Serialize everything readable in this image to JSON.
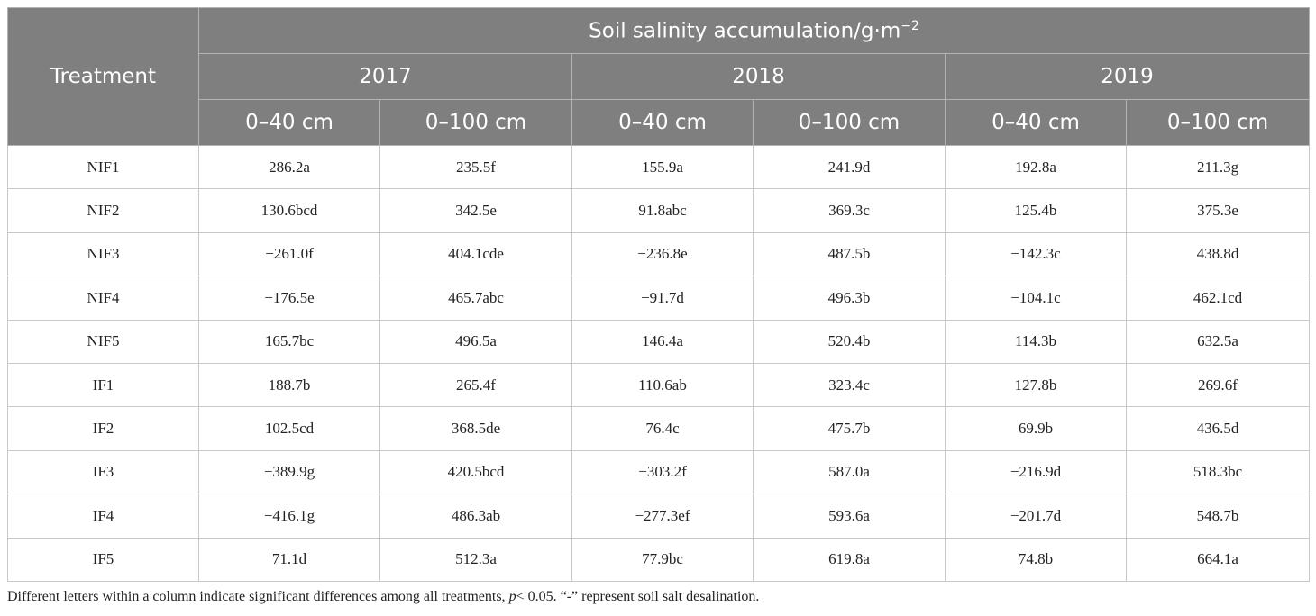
{
  "header": {
    "first_column": "Treatment",
    "title": "Soil salinity accumulation/g·m",
    "unit_exponent": "−2",
    "years": [
      "2017",
      "2018",
      "2019"
    ],
    "depths": [
      "0–40 cm",
      "0–100 cm",
      "0–40 cm",
      "0–100 cm",
      "0–40 cm",
      "0–100 cm"
    ]
  },
  "table": {
    "rows": [
      [
        "NIF1",
        "286.2a",
        "235.5f",
        "155.9a",
        "241.9d",
        "192.8a",
        "211.3g"
      ],
      [
        "NIF2",
        "130.6bcd",
        "342.5e",
        "91.8abc",
        "369.3c",
        "125.4b",
        "375.3e"
      ],
      [
        "NIF3",
        "−261.0f",
        "404.1cde",
        "−236.8e",
        "487.5b",
        "−142.3c",
        "438.8d"
      ],
      [
        "NIF4",
        "−176.5e",
        "465.7abc",
        "−91.7d",
        "496.3b",
        "−104.1c",
        "462.1cd"
      ],
      [
        "NIF5",
        "165.7bc",
        "496.5a",
        "146.4a",
        "520.4b",
        "114.3b",
        "632.5a"
      ],
      [
        "IF1",
        "188.7b",
        "265.4f",
        "110.6ab",
        "323.4c",
        "127.8b",
        "269.6f"
      ],
      [
        "IF2",
        "102.5cd",
        "368.5de",
        "76.4c",
        "475.7b",
        "69.9b",
        "436.5d"
      ],
      [
        "IF3",
        "−389.9g",
        "420.5bcd",
        "−303.2f",
        "587.0a",
        "−216.9d",
        "518.3bc"
      ],
      [
        "IF4",
        "−416.1g",
        "486.3ab",
        "−277.3ef",
        "593.6a",
        "−201.7d",
        "548.7b"
      ],
      [
        "IF5",
        "71.1d",
        "512.3a",
        "77.9bc",
        "619.8a",
        "74.8b",
        "664.1a"
      ]
    ]
  },
  "footnote": {
    "before": "Different letters within a column indicate significant differences among all treatments, ",
    "italic": "p",
    "after": "< 0.05. “-” represent soil salt desalination."
  }
}
